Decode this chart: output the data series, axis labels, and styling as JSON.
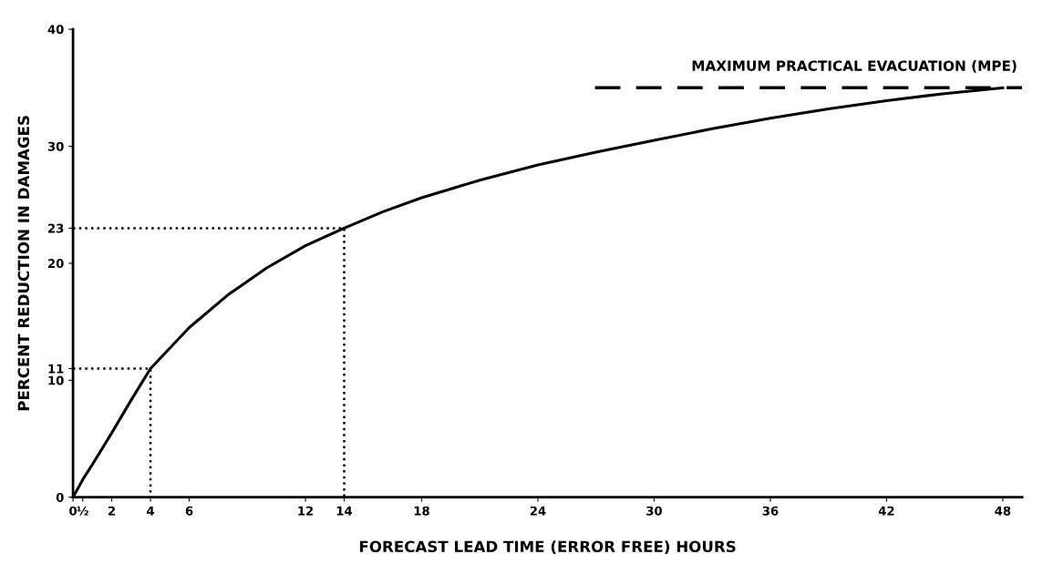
{
  "chart_data": {
    "type": "line",
    "xlabel": "FORECAST LEAD TIME (ERROR FREE) HOURS",
    "ylabel": "PERCENT REDUCTION IN DAMAGES",
    "xlim": [
      0,
      49
    ],
    "xticks": [
      0,
      {
        "value": 0.5,
        "label": "½"
      },
      2,
      4,
      6,
      12,
      14,
      18,
      24,
      30,
      36,
      42,
      48
    ],
    "ylim": [
      0,
      40
    ],
    "yticks": [
      0,
      10,
      11,
      20,
      23,
      30,
      40
    ],
    "grid": false,
    "legend": false,
    "marker": "none",
    "series": [
      {
        "color": "#000000",
        "line_style": "solid",
        "x": [
          0,
          0.5,
          1,
          2,
          3,
          4,
          6,
          8,
          10,
          12,
          14,
          16,
          18,
          21,
          24,
          27,
          30,
          33,
          36,
          39,
          42,
          45,
          48
        ],
        "values": [
          0,
          1.5,
          2.8,
          5.5,
          8.3,
          11,
          14.5,
          17.3,
          19.6,
          21.5,
          23,
          24.4,
          25.6,
          27.1,
          28.4,
          29.5,
          30.5,
          31.5,
          32.4,
          33.2,
          33.9,
          34.5,
          35
        ]
      },
      {
        "color": "#000000",
        "line_style": "dotted",
        "x": [
          0,
          4,
          4
        ],
        "values": [
          11,
          11,
          0
        ]
      },
      {
        "color": "#000000",
        "line_style": "dotted",
        "x": [
          0,
          14,
          14
        ],
        "values": [
          23,
          23,
          0
        ]
      }
    ],
    "ref_lines": [
      {
        "axis": "y",
        "value": 35,
        "label": "MAXIMUM PRACTICAL EVACUATION (MPE)",
        "color": "#000000",
        "line_style": "dashed"
      }
    ]
  }
}
